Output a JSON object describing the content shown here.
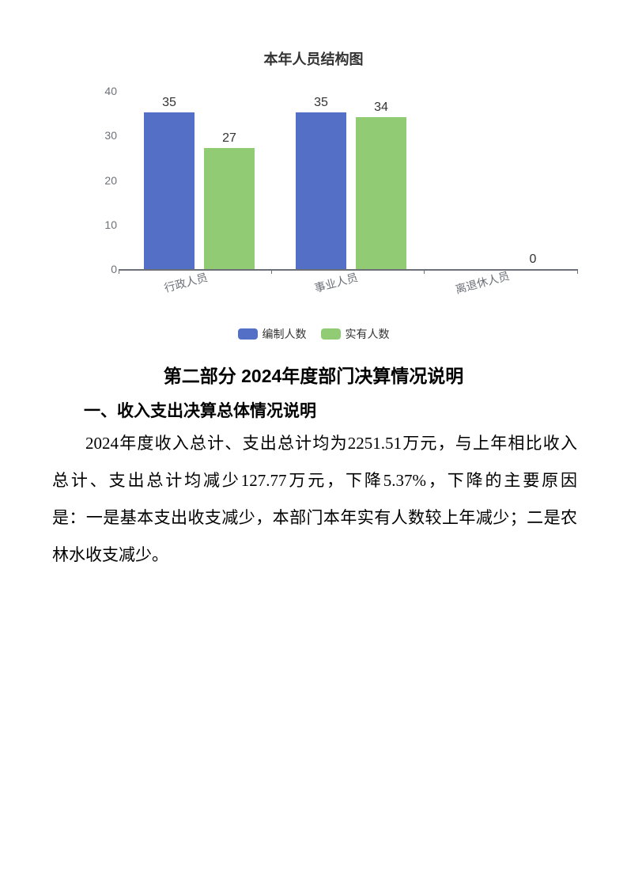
{
  "chart_data": {
    "type": "bar",
    "title": "本年人员结构图",
    "categories": [
      "行政人员",
      "事业人员",
      "离退休人员"
    ],
    "series": [
      {
        "name": "编制人数",
        "color": "#5470c6",
        "values": [
          35,
          35,
          0
        ]
      },
      {
        "name": "实有人数",
        "color": "#91cc75",
        "values": [
          27,
          34,
          0
        ]
      }
    ],
    "ylim": [
      0,
      40
    ],
    "y_ticks": [
      40,
      30,
      20,
      10,
      0
    ],
    "grid": false,
    "legend_position": "bottom",
    "value_labels": true
  },
  "chart": {
    "bars": [
      {
        "series": 0,
        "cat": 0,
        "value": 35
      },
      {
        "series": 1,
        "cat": 0,
        "value": 27
      },
      {
        "series": 0,
        "cat": 1,
        "value": 35
      },
      {
        "series": 1,
        "cat": 1,
        "value": 34
      },
      {
        "series": 1,
        "cat": 2,
        "value": 0
      }
    ]
  },
  "document": {
    "part_heading": "第二部分 2024年度部门决算情况说明",
    "section_heading": "一、收入支出决算总体情况说明",
    "paragraph_lines": [
      "2024年度收入总计、支出总计均为2251.51万元，与上年相比收入",
      "总计、支出总计均减少127.77万元，下降5.37%，下降的主要原因",
      "是：一是基本支出收支减少，本部门本年实有人数较上年减少；二是农",
      "林水收支减少。"
    ]
  }
}
